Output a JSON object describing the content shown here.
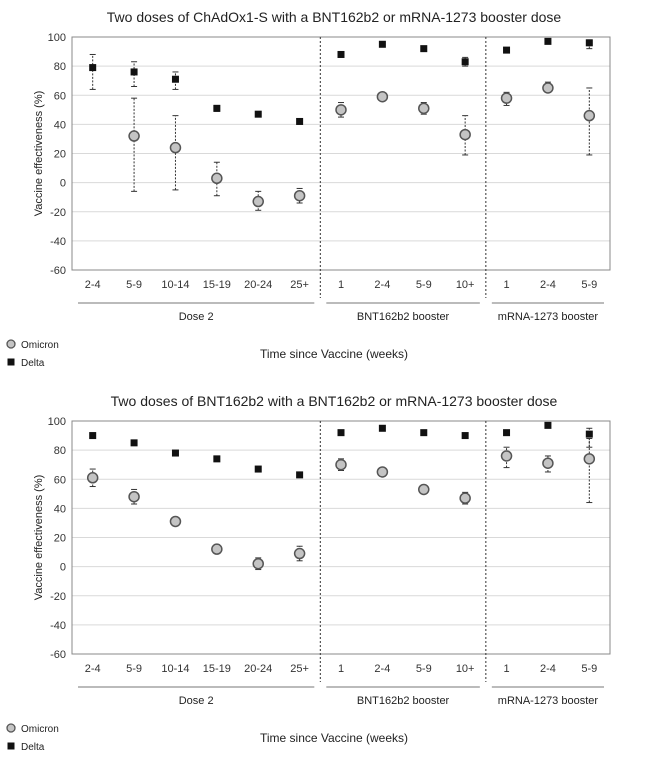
{
  "colors": {
    "omicron_fill": "#c4c4c4",
    "omicron_stroke": "#555555",
    "delta": "#111111",
    "grid": "#d9d9d9",
    "axis": "#888888"
  },
  "chart_data": [
    {
      "type": "scatter",
      "title": "Two doses of ChAdOx1-S with a BNT162b2 or mRNA-1273 booster dose",
      "ylabel": "Vaccine effectiveness (%)",
      "xlabel": "Time since Vaccine (weeks)",
      "ylim": [
        -60,
        100
      ],
      "yticks": [
        100,
        80,
        60,
        40,
        20,
        0,
        -20,
        -40,
        -60
      ],
      "grid": true,
      "legend_position": "bottom-left",
      "categories": [
        "2-4",
        "5-9",
        "10-14",
        "15-19",
        "20-24",
        "25+",
        "1",
        "2-4",
        "5-9",
        "10+",
        "1",
        "2-4",
        "5-9"
      ],
      "groups": [
        {
          "label": "Dose 2",
          "count": 6
        },
        {
          "label": "BNT162b2 booster",
          "count": 4
        },
        {
          "label": "mRNA-1273 booster",
          "count": 3
        }
      ],
      "series": [
        {
          "name": "Omicron",
          "marker": "circle",
          "values": [
            null,
            32,
            24,
            3,
            -13,
            -9,
            50,
            59,
            51,
            33,
            58,
            65,
            46
          ],
          "ci_low": [
            null,
            -6,
            -5,
            -9,
            -19,
            -14,
            45,
            57,
            47,
            19,
            53,
            62,
            19
          ],
          "ci_high": [
            null,
            58,
            46,
            14,
            -6,
            -4,
            55,
            61,
            55,
            46,
            62,
            69,
            65
          ]
        },
        {
          "name": "Delta",
          "marker": "square",
          "values": [
            79,
            76,
            71,
            51,
            47,
            42,
            88,
            95,
            92,
            83,
            91,
            97,
            96
          ],
          "ci_low": [
            64,
            66,
            64,
            49,
            null,
            null,
            null,
            null,
            null,
            80,
            null,
            null,
            92
          ],
          "ci_high": [
            88,
            83,
            76,
            53,
            null,
            null,
            null,
            null,
            null,
            86,
            null,
            null,
            98
          ]
        }
      ]
    },
    {
      "type": "scatter",
      "title": "Two doses of BNT162b2 with a BNT162b2 or mRNA-1273 booster dose",
      "ylabel": "Vaccine effectiveness (%)",
      "xlabel": "Time since Vaccine (weeks)",
      "ylim": [
        -60,
        100
      ],
      "yticks": [
        100,
        80,
        60,
        40,
        20,
        0,
        -20,
        -40,
        -60
      ],
      "grid": true,
      "legend_position": "bottom-left",
      "categories": [
        "2-4",
        "5-9",
        "10-14",
        "15-19",
        "20-24",
        "25+",
        "1",
        "2-4",
        "5-9",
        "10+",
        "1",
        "2-4",
        "5-9"
      ],
      "groups": [
        {
          "label": "Dose 2",
          "count": 6
        },
        {
          "label": "BNT162b2 booster",
          "count": 4
        },
        {
          "label": "mRNA-1273 booster",
          "count": 3
        }
      ],
      "series": [
        {
          "name": "Omicron",
          "marker": "circle",
          "values": [
            61,
            48,
            31,
            12,
            2,
            9,
            70,
            65,
            53,
            47,
            76,
            71,
            74
          ],
          "ci_low": [
            55,
            43,
            28,
            9,
            -2,
            4,
            66,
            62,
            51,
            43,
            68,
            65,
            44
          ],
          "ci_high": [
            67,
            53,
            34,
            15,
            6,
            14,
            74,
            68,
            56,
            51,
            82,
            76,
            88
          ]
        },
        {
          "name": "Delta",
          "marker": "square",
          "values": [
            90,
            85,
            78,
            74,
            67,
            63,
            92,
            95,
            92,
            90,
            92,
            97,
            91
          ],
          "ci_low": [
            null,
            null,
            null,
            null,
            null,
            null,
            null,
            null,
            null,
            null,
            null,
            null,
            82
          ],
          "ci_high": [
            null,
            null,
            null,
            null,
            null,
            null,
            null,
            null,
            null,
            null,
            null,
            null,
            95
          ]
        }
      ]
    }
  ]
}
